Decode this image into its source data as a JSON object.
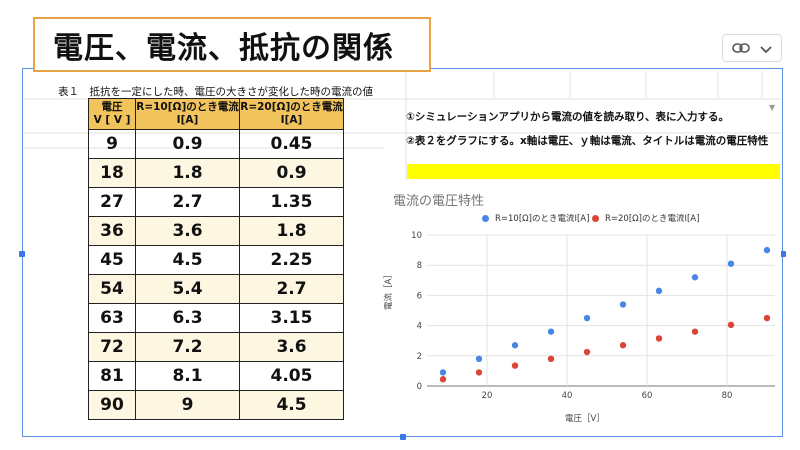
{
  "slide_title": "電圧、電流、抵抗の関係",
  "table": {
    "caption": "表１　抵抗を一定にした時、電圧の大きさが変化した時の電流の値",
    "headers": [
      {
        "line1": "電圧",
        "line2": "V [ V ]"
      },
      {
        "line1": "R=10[Ω]のとき電流",
        "line2": "I[A]"
      },
      {
        "line1": "R=20[Ω]のとき電流",
        "line2": "I[A]"
      }
    ],
    "rows": [
      [
        "9",
        "0.9",
        "0.45"
      ],
      [
        "18",
        "1.8",
        "0.9"
      ],
      [
        "27",
        "2.7",
        "1.35"
      ],
      [
        "36",
        "3.6",
        "1.8"
      ],
      [
        "45",
        "4.5",
        "2.25"
      ],
      [
        "54",
        "5.4",
        "2.7"
      ],
      [
        "63",
        "6.3",
        "3.15"
      ],
      [
        "72",
        "7.2",
        "3.6"
      ],
      [
        "81",
        "8.1",
        "4.05"
      ],
      [
        "90",
        "9",
        "4.5"
      ]
    ]
  },
  "instructions": {
    "step1": "①シミュレーションアプリから電流の値を読み取り、表に入力する。",
    "step2": "②表２をグラフにする。x軸は電圧、ｙ軸は電流、タイトルは電流の電圧特性"
  },
  "chart_data": {
    "type": "scatter",
    "title": "電流の電圧特性",
    "xlabel": "電圧［V］",
    "ylabel": "電流［A］",
    "xlim": [
      5,
      92
    ],
    "ylim": [
      0,
      10
    ],
    "xticks": [
      20,
      40,
      60,
      80
    ],
    "yticks": [
      0,
      2,
      4,
      6,
      8,
      10
    ],
    "series": [
      {
        "name": "R=10[Ω]のとき電流I[A]",
        "color": "#4a86e8",
        "x": [
          9,
          18,
          27,
          36,
          45,
          54,
          63,
          72,
          81,
          90
        ],
        "y": [
          0.9,
          1.8,
          2.7,
          3.6,
          4.5,
          5.4,
          6.3,
          7.2,
          8.1,
          9
        ]
      },
      {
        "name": "R=20[Ω]のとき電流I[A]",
        "color": "#db4437",
        "x": [
          9,
          18,
          27,
          36,
          45,
          54,
          63,
          72,
          81,
          90
        ],
        "y": [
          0.45,
          0.9,
          1.35,
          1.8,
          2.25,
          2.7,
          3.15,
          3.6,
          4.05,
          4.5
        ]
      }
    ]
  },
  "colors": {
    "accent_orange": "#e8a245",
    "header_gold": "#f2c45d",
    "highlight_yellow": "#ffff00",
    "selection_blue": "#3b78e7"
  },
  "icons": {
    "link": "link-icon",
    "menu": "chevron-down-icon"
  }
}
